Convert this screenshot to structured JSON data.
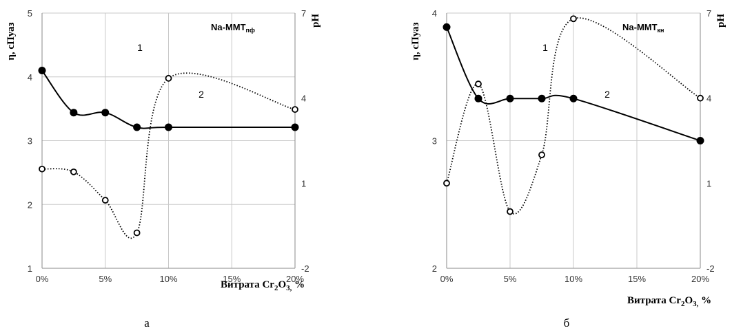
{
  "chart_data": [
    {
      "type": "line",
      "panel_label": "а",
      "title": "Na-MMT",
      "title_subscript": "пф",
      "xlabel_prefix": "Витрата Cr",
      "xlabel_sub1": "2",
      "xlabel_mid": "O",
      "xlabel_sub2": "3,",
      "xlabel_suffix": " %",
      "ylabel_left": "η, сПуаз",
      "ylabel_right": "pH",
      "x_ticks": [
        "0%",
        "5%",
        "10%",
        "15%",
        "20%"
      ],
      "xlim": [
        0,
        20
      ],
      "y_left_ticks": [
        "1",
        "2",
        "3",
        "4",
        "5"
      ],
      "ylim_left": [
        1,
        5
      ],
      "y_right_ticks": [
        "-2",
        "1",
        "4",
        "7"
      ],
      "ylim_right": [
        -2,
        7
      ],
      "grid": true,
      "series": [
        {
          "label": "2",
          "axis": "left",
          "style": "solid",
          "marker": "filled",
          "x": [
            0,
            2.5,
            5,
            7.5,
            10,
            20
          ],
          "y": [
            4.1,
            3.44,
            3.44,
            3.21,
            3.21,
            3.21
          ]
        },
        {
          "label": "1",
          "axis": "right",
          "style": "dotted",
          "marker": "open",
          "x": [
            0,
            2.5,
            5,
            7.5,
            10,
            20
          ],
          "y": [
            1.5,
            1.4,
            0.4,
            -0.75,
            4.7,
            3.6
          ]
        }
      ],
      "annotations": [
        "1",
        "2"
      ]
    },
    {
      "type": "line",
      "panel_label": "б",
      "title": "Na-MMT",
      "title_subscript": "кн",
      "xlabel_prefix": "Витрата Cr",
      "xlabel_sub1": "2",
      "xlabel_mid": "O",
      "xlabel_sub2": "3,",
      "xlabel_suffix": " %",
      "ylabel_left": "η, сПуаз",
      "ylabel_right": "pH",
      "x_ticks": [
        "0%",
        "5%",
        "10%",
        "15%",
        "20%"
      ],
      "xlim": [
        0,
        20
      ],
      "y_left_ticks": [
        "2",
        "3",
        "4"
      ],
      "ylim_left": [
        2,
        4
      ],
      "y_right_ticks": [
        "-2",
        "1",
        "4",
        "7"
      ],
      "ylim_right": [
        -2,
        7
      ],
      "grid": true,
      "series": [
        {
          "label": "2",
          "axis": "left",
          "style": "solid",
          "marker": "filled",
          "x": [
            0,
            2.5,
            5,
            7.5,
            10,
            20
          ],
          "y": [
            3.89,
            3.33,
            3.33,
            3.33,
            3.33,
            3.0
          ]
        },
        {
          "label": "1",
          "axis": "right",
          "style": "dotted",
          "marker": "open",
          "x": [
            0,
            2.5,
            5,
            7.5,
            10,
            20
          ],
          "y": [
            1.0,
            4.5,
            0.0,
            2.0,
            6.8,
            4.0
          ]
        }
      ],
      "annotations": [
        "1",
        "2"
      ]
    }
  ]
}
